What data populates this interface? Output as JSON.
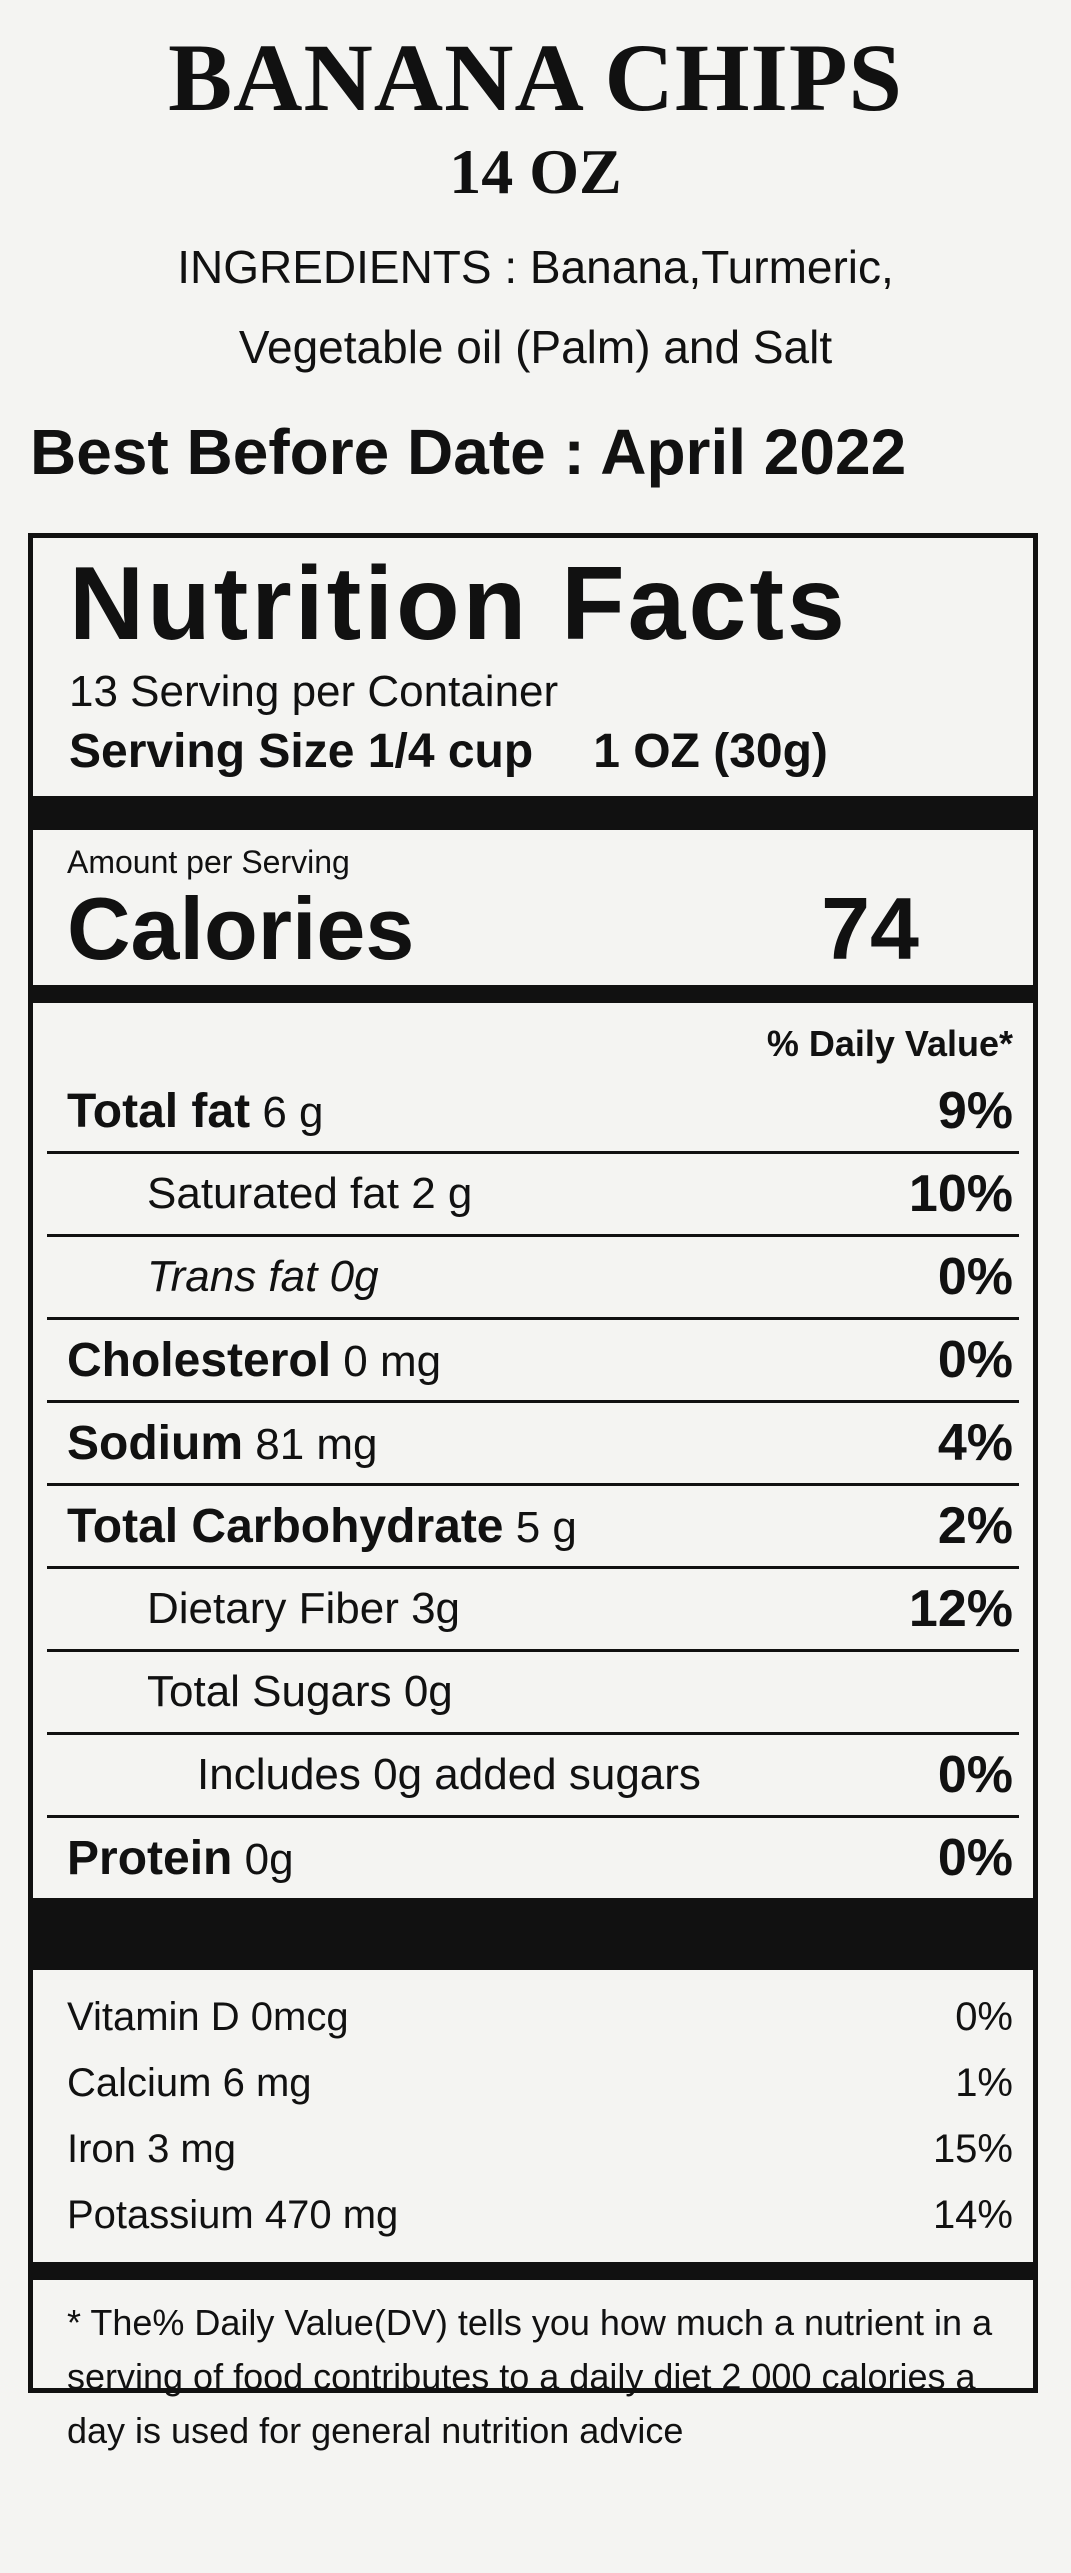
{
  "product": {
    "title": "BANANA CHIPS",
    "net_weight": "14 OZ",
    "ingredients_line1": "INGREDIENTS : Banana,Turmeric,",
    "ingredients_line2": "Vegetable oil (Palm) and Salt",
    "best_before": "Best Before Date : April 2022"
  },
  "nutrition": {
    "heading": "Nutrition Facts",
    "servings": "13 Serving per Container",
    "serving_size_label": "Serving Size 1/4 cup",
    "serving_size_weight": "1 OZ (30g)",
    "amount_per_serving": "Amount per Serving",
    "calories_label": "Calories",
    "calories_value": "74",
    "dv_header": "% Daily Value*",
    "rows": [
      {
        "name": "Total fat",
        "amount": "6 g",
        "dv": "9%"
      },
      {
        "name": "Saturated fat",
        "amount": "2 g",
        "dv": "10%"
      },
      {
        "name": "Trans fat",
        "amount": "0g",
        "dv": "0%"
      },
      {
        "name": "Cholesterol",
        "amount": "0 mg",
        "dv": "0%"
      },
      {
        "name": "Sodium",
        "amount": "81 mg",
        "dv": "4%"
      },
      {
        "name": "Total Carbohydrate",
        "amount": "5 g",
        "dv": "2%"
      },
      {
        "name": "Dietary Fiber",
        "amount": "3g",
        "dv": "12%"
      },
      {
        "name": "Total Sugars",
        "amount": "0g",
        "dv": ""
      },
      {
        "name": "Includes",
        "amount": "0g added sugars",
        "dv": "0%"
      },
      {
        "name": "Protein",
        "amount": "0g",
        "dv": "0%"
      }
    ],
    "vitamins": [
      {
        "name": "Vitamin D",
        "amount": "0mcg",
        "dv": "0%"
      },
      {
        "name": "Calcium",
        "amount": "6 mg",
        "dv": "1%"
      },
      {
        "name": "Iron",
        "amount": "3 mg",
        "dv": "15%"
      },
      {
        "name": "Potassium",
        "amount": "470 mg",
        "dv": "14%"
      }
    ],
    "footnote": "* The% Daily Value(DV) tells you how much a nutrient in a serving of food contributes to a daily diet 2 000 calories a day is used for general nutrition advice"
  }
}
